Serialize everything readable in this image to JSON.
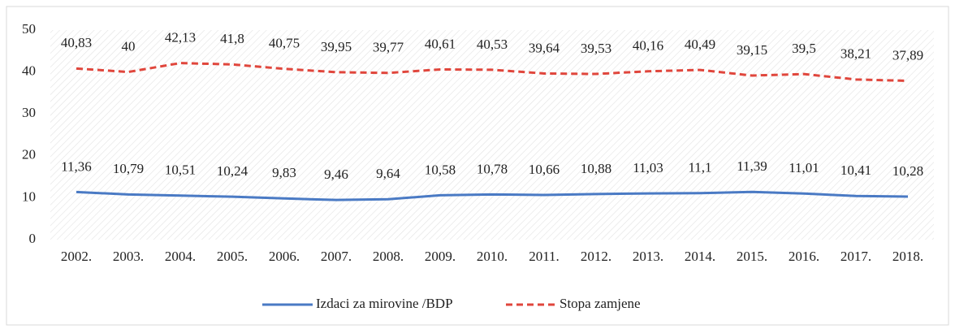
{
  "chart_data": {
    "type": "line",
    "categories": [
      "2002.",
      "2003.",
      "2004.",
      "2005.",
      "2006.",
      "2007.",
      "2008.",
      "2009.",
      "2010.",
      "2011.",
      "2012.",
      "2013.",
      "2014.",
      "2015.",
      "2016.",
      "2017.",
      "2018."
    ],
    "series": [
      {
        "name": "Izdaci za mirovine /BDP",
        "color": "#4a7ac4",
        "style": "solid",
        "values": [
          11.36,
          10.79,
          10.51,
          10.24,
          9.83,
          9.46,
          9.64,
          10.58,
          10.78,
          10.66,
          10.88,
          11.03,
          11.1,
          11.39,
          11.01,
          10.41,
          10.28
        ],
        "value_labels": [
          "11,36",
          "10,79",
          "10,51",
          "10,24",
          "9,83",
          "9,46",
          "9,64",
          "10,58",
          "10,78",
          "10,66",
          "10,88",
          "11,03",
          "11,1",
          "11,39",
          "11,01",
          "10,41",
          "10,28"
        ]
      },
      {
        "name": "Stopa zamjene",
        "color": "#e0463c",
        "style": "dashed",
        "values": [
          40.83,
          40,
          42.13,
          41.8,
          40.75,
          39.95,
          39.77,
          40.61,
          40.53,
          39.64,
          39.53,
          40.16,
          40.49,
          39.15,
          39.5,
          38.21,
          37.89
        ],
        "value_labels": [
          "40,83",
          "40",
          "42,13",
          "41,8",
          "40,75",
          "39,95",
          "39,77",
          "40,61",
          "40,53",
          "39,64",
          "39,53",
          "40,16",
          "40,49",
          "39,15",
          "39,5",
          "38,21",
          "37,89"
        ]
      }
    ],
    "ylim": [
      0,
      50
    ],
    "yticks": [
      0,
      10,
      20,
      30,
      40,
      50
    ],
    "legend": "bottom"
  }
}
